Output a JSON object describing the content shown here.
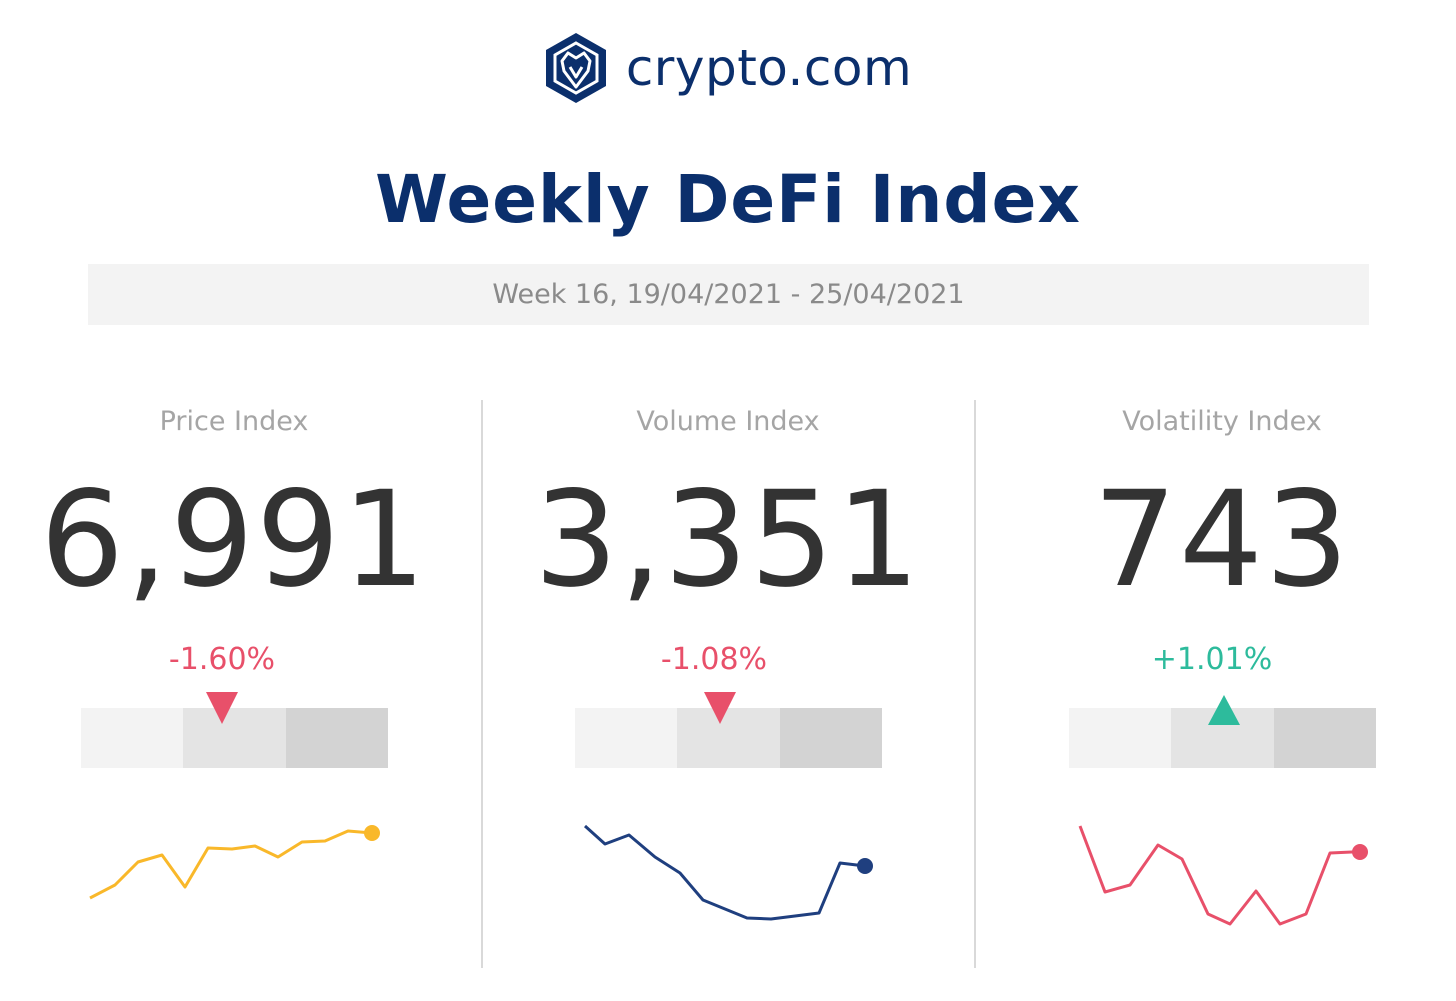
{
  "brand": {
    "name": "crypto.com",
    "logo": "crypto-com-lion-hexagon-logo",
    "color": "#0b2f6c"
  },
  "title": "Weekly DeFi Index",
  "date_range": "Week 16, 19/04/2021 - 25/04/2021",
  "colors": {
    "negative": "#e8506a",
    "positive": "#2dbb9c",
    "value_text": "#333333",
    "label_text": "#a5a5a5"
  },
  "chart_data": [
    {
      "type": "line",
      "title": "Price Index",
      "value": "6,991",
      "change": "-1.60%",
      "direction": "down",
      "scale_segment": 1,
      "marker_fraction": 0.4,
      "line_color": "#f9b82a",
      "x": [
        0,
        1,
        2,
        3,
        4,
        5,
        6,
        7,
        8,
        9,
        10,
        11,
        12
      ],
      "values": [
        898,
        885,
        862,
        855,
        887,
        848,
        849,
        846,
        857,
        842,
        841,
        831,
        833
      ],
      "ylim": [
        910,
        820
      ]
    },
    {
      "type": "line",
      "title": "Volume Index",
      "value": "3,351",
      "change": "-1.08%",
      "direction": "down",
      "scale_segment": 1,
      "marker_fraction": 0.4,
      "line_color": "#1f3f7f",
      "x": [
        0,
        1,
        2,
        3,
        4,
        5,
        6,
        7,
        8,
        9,
        10,
        11,
        12
      ],
      "values": [
        826,
        844,
        835,
        857,
        873,
        900,
        909,
        918,
        919,
        916,
        913,
        863,
        866
      ],
      "ylim": [
        810,
        930
      ]
    },
    {
      "type": "line",
      "title": "Volatility Index",
      "value": "743",
      "change": "+1.01%",
      "direction": "up",
      "scale_segment": 1,
      "marker_fraction": 0.5,
      "line_color": "#e8506a",
      "x": [
        0,
        1,
        2,
        3,
        4,
        5,
        6,
        7,
        8,
        9,
        10,
        11,
        12
      ],
      "values": [
        826,
        892,
        885,
        845,
        859,
        914,
        924,
        891,
        924,
        914,
        853,
        852,
        852
      ],
      "ylim": [
        810,
        935
      ]
    }
  ]
}
